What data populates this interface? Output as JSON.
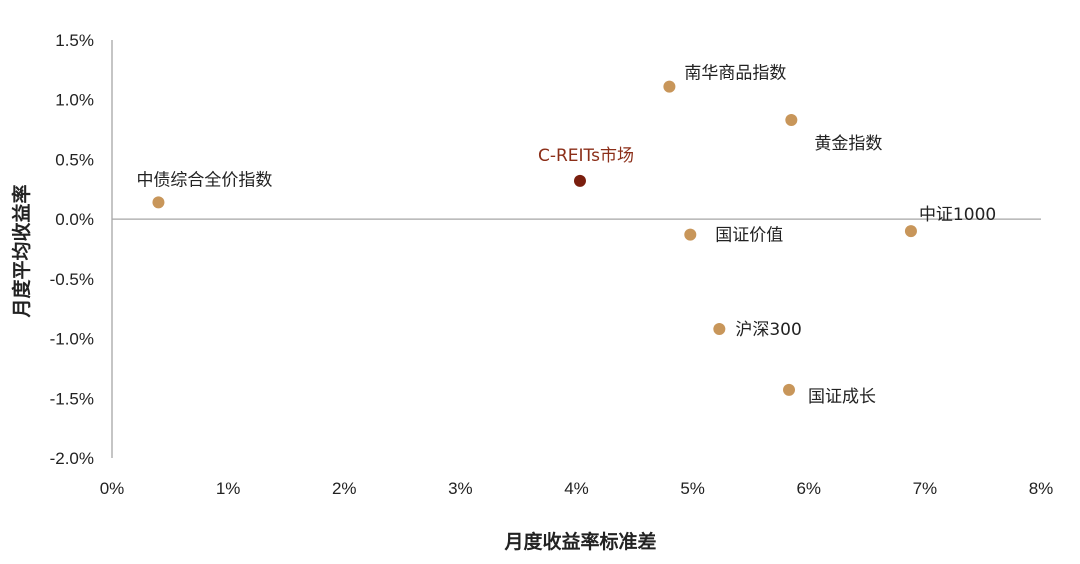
{
  "chart_data": {
    "type": "scatter",
    "xlabel": "月度收益率标准差",
    "ylabel": "月度平均收益率",
    "xlim": [
      0,
      8
    ],
    "ylim": [
      -2.0,
      1.5
    ],
    "x_ticks": [
      "0%",
      "1%",
      "2%",
      "3%",
      "4%",
      "5%",
      "6%",
      "7%",
      "8%"
    ],
    "y_ticks": [
      "1.5%",
      "1.0%",
      "0.5%",
      "0.0%",
      "-0.5%",
      "-1.0%",
      "-1.5%",
      "-2.0%"
    ],
    "grid": false,
    "colors": {
      "point": "#C8965A",
      "highlight": "#7A1E0E",
      "highlight_label": "#8B2E18",
      "axis": "#A6A6A6"
    },
    "points": [
      {
        "label": "中债综合全价指数",
        "x": 0.4,
        "y": 0.14
      },
      {
        "label": "C-REITs市场",
        "x": 4.03,
        "y": 0.32,
        "highlight": true
      },
      {
        "label": "南华商品指数",
        "x": 4.8,
        "y": 1.11
      },
      {
        "label": "黄金指数",
        "x": 5.85,
        "y": 0.83
      },
      {
        "label": "国证价值",
        "x": 4.98,
        "y": -0.13
      },
      {
        "label": "中证1000",
        "x": 6.88,
        "y": -0.1
      },
      {
        "label": "沪深300",
        "x": 5.23,
        "y": -0.92
      },
      {
        "label": "国证成长",
        "x": 5.83,
        "y": -1.43
      }
    ]
  }
}
